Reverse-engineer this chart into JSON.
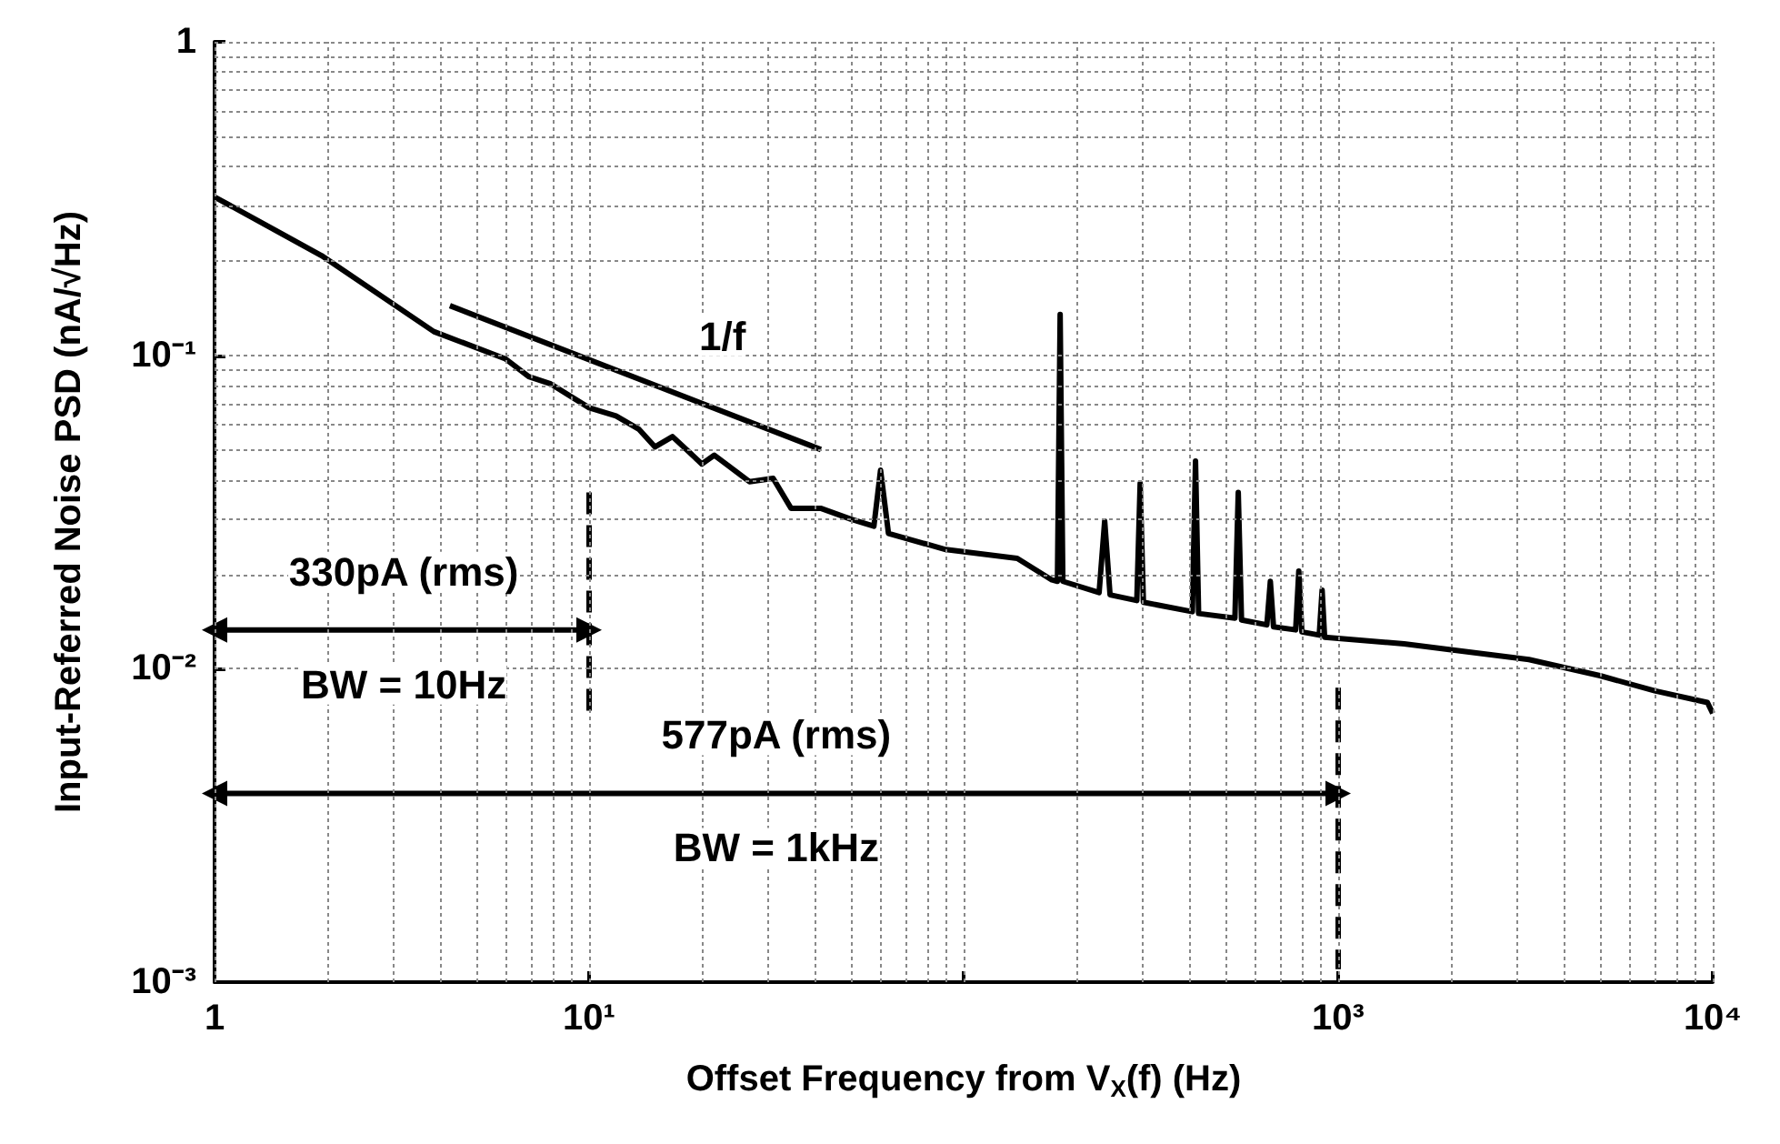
{
  "chart_data": {
    "type": "line",
    "xlabel": "Offset Frequency from V$_{X}$(f) (Hz)",
    "ylabel": "Input-Referred Noise PSD (nA/√Hz)",
    "log": "xy",
    "grid": true,
    "xlim": [
      1,
      10000
    ],
    "ylim": [
      0.001,
      1
    ],
    "xticks": [
      1,
      {
        "value": 10,
        "label": "10¹"
      },
      {
        "value": 100,
        "label": null
      },
      {
        "value": 1000,
        "label": "10³"
      },
      {
        "value": 10000,
        "label": "10⁴"
      }
    ],
    "yticks": [
      {
        "value": 0.001,
        "label": "10⁻³"
      },
      {
        "value": 0.01,
        "label": "10⁻²"
      },
      {
        "value": 0.1,
        "label": "10⁻¹"
      },
      1
    ],
    "series": [
      {
        "color": "#000000",
        "x": [
          1,
          1.93,
          3.85,
          5.97,
          6.9,
          7.9,
          10,
          11.8,
          13.6,
          15,
          16.7,
          20,
          21.6,
          26.8,
          31,
          34.6,
          41.5,
          50,
          57.6,
          60,
          63,
          89.6,
          139,
          172,
          178,
          181,
          184,
          230,
          238,
          246,
          290,
          296,
          302,
          408,
          416,
          424,
          530,
          541,
          552,
          645,
          659,
          672,
          770,
          785,
          800,
          890,
          906,
          920,
          1000,
          1500,
          2000,
          3230,
          5000,
          7000,
          9680,
          10000
        ],
        "values": [
          0.32,
          0.208,
          0.119,
          0.0975,
          0.0855,
          0.081,
          0.068,
          0.064,
          0.058,
          0.051,
          0.055,
          0.045,
          0.048,
          0.0395,
          0.0405,
          0.0325,
          0.0325,
          0.03,
          0.0285,
          0.043,
          0.027,
          0.024,
          0.0225,
          0.0192,
          0.019,
          0.135,
          0.019,
          0.0175,
          0.0296,
          0.0172,
          0.0165,
          0.039,
          0.0163,
          0.0152,
          0.046,
          0.015,
          0.0145,
          0.0365,
          0.0143,
          0.0138,
          0.019,
          0.0136,
          0.0133,
          0.0205,
          0.0131,
          0.0128,
          0.0178,
          0.0126,
          0.0125,
          0.012,
          0.0115,
          0.0107,
          0.0095,
          0.0085,
          0.0078,
          0.0072
        ]
      },
      {
        "color": "#000000",
        "x": [
          4.25,
          41.6
        ],
        "values": [
          0.144,
          0.05
        ]
      },
      {
        "color": "#000000",
        "x": [
          10,
          10
        ],
        "values": [
          0.0365,
          0.007
        ],
        "line_style": "dashed"
      },
      {
        "color": "#000000",
        "x": [
          1000,
          1000
        ],
        "values": [
          0.0087,
          0.0011
        ],
        "line_style": "dashed"
      },
      {
        "color": "#000000",
        "x": [
          1,
          10
        ],
        "values": [
          0.0133,
          0.0133
        ],
        "marker": "triangle"
      },
      {
        "color": "#000000",
        "x": [
          1,
          1000
        ],
        "values": [
          0.004,
          0.004
        ],
        "marker": "triangle"
      }
    ],
    "annotations": [
      {
        "text": "1/f",
        "x": 22.7,
        "y": 0.115
      },
      {
        "text": "330pA (rms)",
        "x": 3.2,
        "y": 0.0133
      },
      {
        "text": "BW = 10Hz",
        "x": 3.2,
        "y": 0.0133
      },
      {
        "text": "577pA (rms)",
        "x": 31.6,
        "y": 0.004
      },
      {
        "text": "BW = 1kHz",
        "x": 31.6,
        "y": 0.004
      }
    ]
  }
}
